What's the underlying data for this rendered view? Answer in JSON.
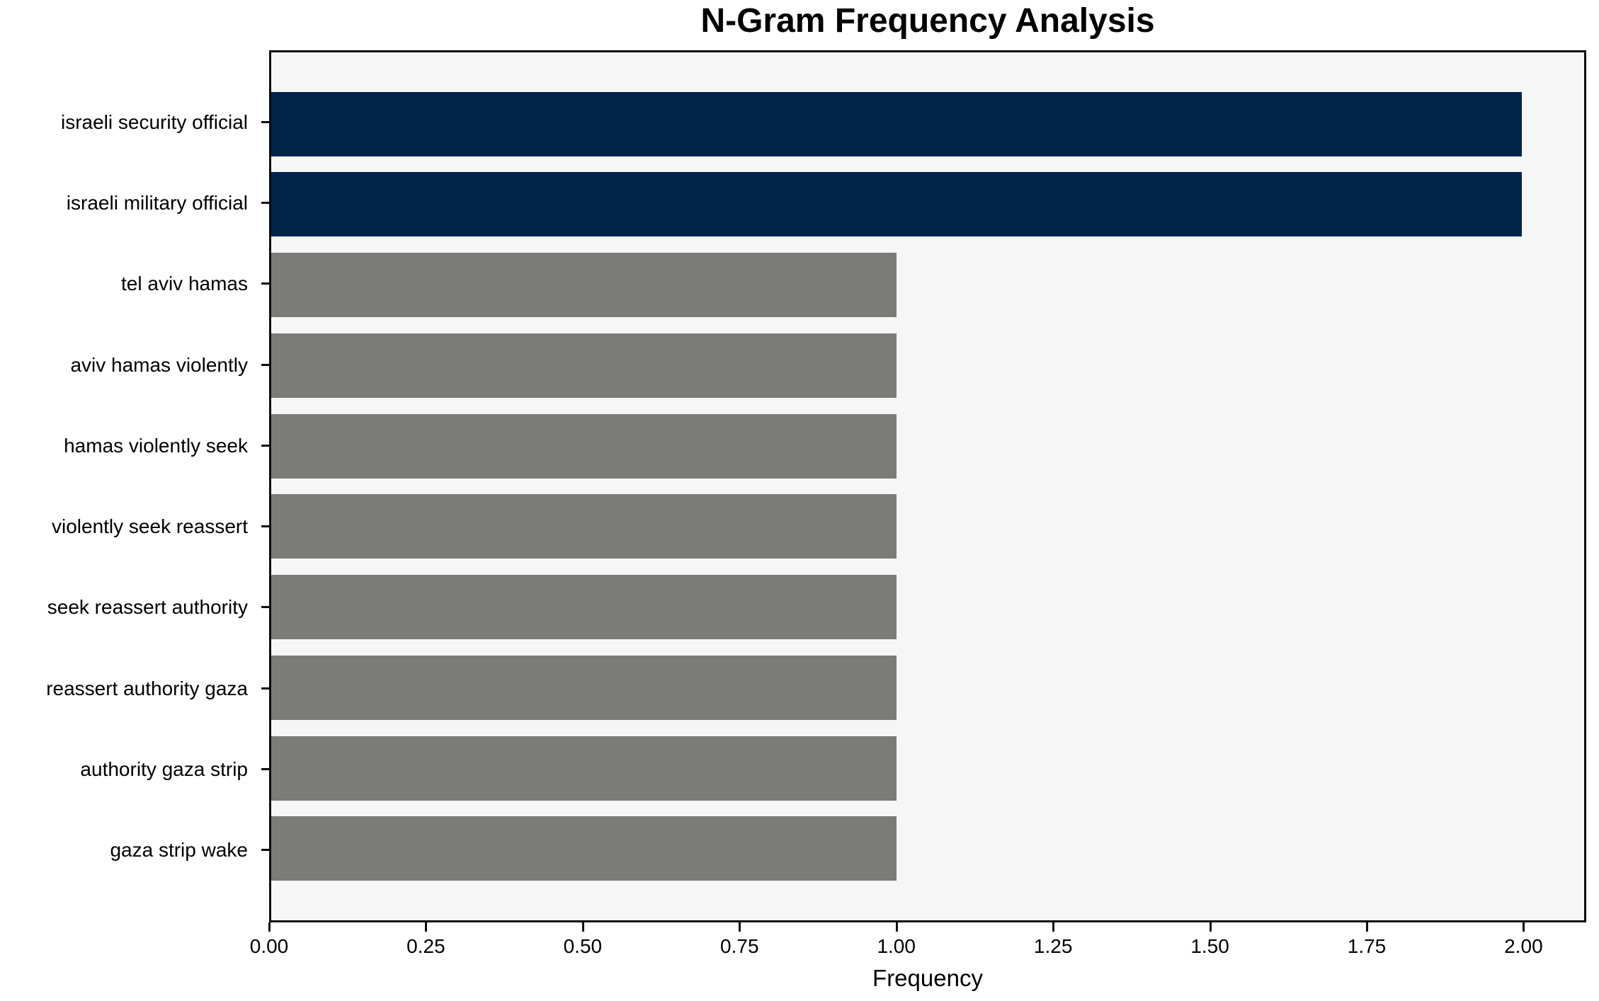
{
  "title": "N-Gram Frequency Analysis",
  "chart_data": {
    "type": "bar",
    "orientation": "horizontal",
    "title": "N-Gram Frequency Analysis",
    "xlabel": "Frequency",
    "ylabel": "",
    "categories": [
      "israeli security official",
      "israeli military official",
      "tel aviv hamas",
      "aviv hamas violently",
      "hamas violently seek",
      "violently seek reassert",
      "seek reassert authority",
      "reassert authority gaza",
      "authority gaza strip",
      "gaza strip wake"
    ],
    "values": [
      2,
      2,
      1,
      1,
      1,
      1,
      1,
      1,
      1,
      1
    ],
    "bar_colors": [
      "#02234a",
      "#02234a",
      "#7b7b78",
      "#7b7b78",
      "#7b7b78",
      "#7b7b78",
      "#7b7b78",
      "#7b7b78",
      "#7b7b78",
      "#7b7b78"
    ],
    "xlim": [
      0,
      2.1
    ],
    "xtick_values": [
      0,
      0.25,
      0.5,
      0.75,
      1.0,
      1.25,
      1.5,
      1.75,
      2.0
    ],
    "xtick_labels": [
      "0.00",
      "0.25",
      "0.50",
      "0.75",
      "1.00",
      "1.25",
      "1.50",
      "1.75",
      "2.00"
    ],
    "grid": false,
    "legend": null,
    "bar_fraction": 0.8,
    "axis_margin": 0.05,
    "colors": {
      "highlight": "#02234a",
      "default": "#7b7b78",
      "plot_background": "#f6f6f6",
      "figure_background": "#ffffff",
      "spine": "#0d0d0d",
      "text": "#000000"
    }
  }
}
